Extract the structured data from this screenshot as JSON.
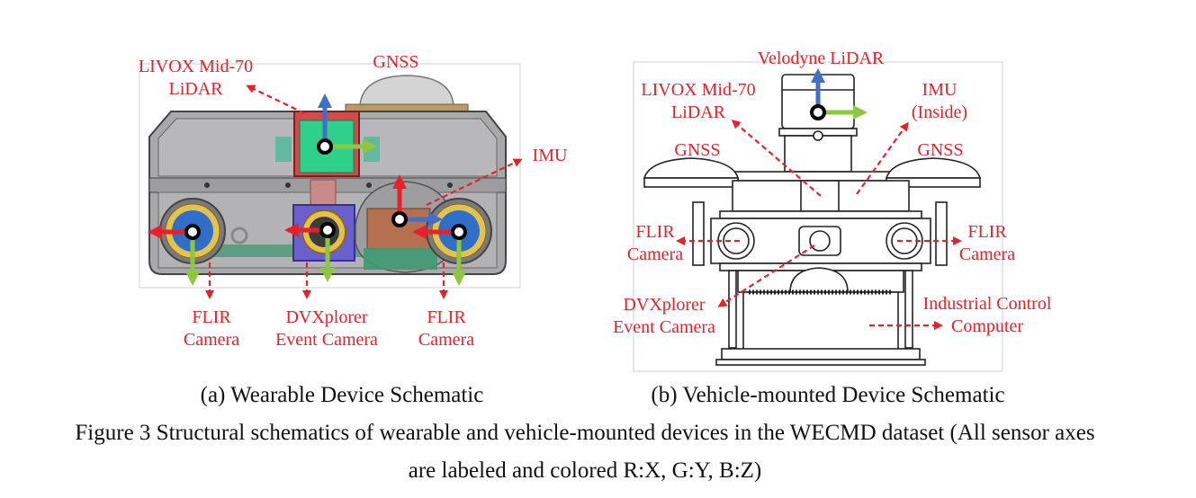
{
  "figure": {
    "caption_line1": "Figure 3 Structural schematics of wearable and vehicle-mounted devices in the WECMD dataset (All sensor axes",
    "caption_line2": "are labeled and colored R:X, G:Y, B:Z)"
  },
  "panel_a": {
    "subcaption": "(a) Wearable Device Schematic",
    "labels": {
      "livox_line1": "LIVOX Mid-70",
      "livox_line2": "LiDAR",
      "gnss": "GNSS",
      "imu": "IMU",
      "flir_left_line1": "FLIR",
      "flir_left_line2": "Camera",
      "dvx_line1": "DVXplorer",
      "dvx_line2": "Event Camera",
      "flir_right_line1": "FLIR",
      "flir_right_line2": "Camera"
    }
  },
  "panel_b": {
    "subcaption": "(b) Vehicle-mounted Device Schematic",
    "labels": {
      "velodyne": "Velodyne LiDAR",
      "livox_line1": "LIVOX Mid-70",
      "livox_line2": "LiDAR",
      "imu_line1": "IMU",
      "imu_line2": "(Inside)",
      "gnss_left": "GNSS",
      "gnss_right": "GNSS",
      "flir_left_line1": "FLIR",
      "flir_left_line2": "Camera",
      "flir_right_line1": "FLIR",
      "flir_right_line2": "Camera",
      "dvx_line1": "DVXplorer",
      "dvx_line2": "Event Camera",
      "ipc_line1": "Industrial Control",
      "ipc_line2": "Computer"
    }
  },
  "colors": {
    "label_red": "#e8202a",
    "axis_x": "#e8202a",
    "axis_y": "#8dc63f",
    "axis_z": "#3f6fc6"
  }
}
